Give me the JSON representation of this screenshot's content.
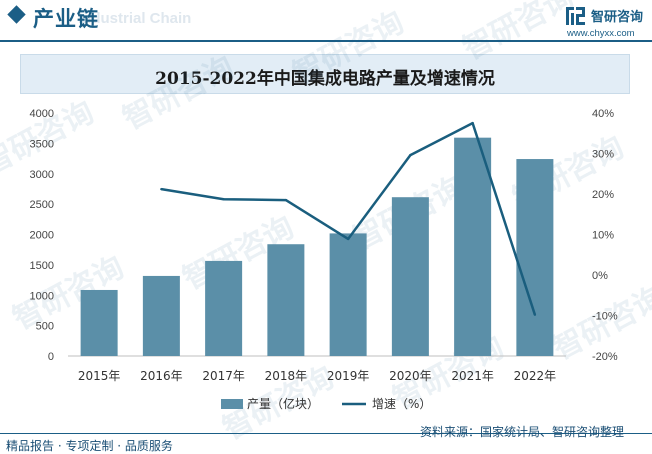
{
  "header": {
    "title": "产业链",
    "subtitle": "Industrial Chain",
    "logo_name": "智研咨询",
    "logo_url": "www.chyxx.com"
  },
  "watermark": {
    "text": "智研咨询"
  },
  "footer": {
    "left": "精品报告 · 专项定制 · 品质服务",
    "source": "资料来源：国家统计局、智研咨询整理"
  },
  "colors": {
    "bar": "#5b8fa8",
    "line": "#1a5e7e",
    "brand": "#1b5e86"
  },
  "chart_data": {
    "type": "bar",
    "title": "2015-2022年中国集成电路产量及增速情况",
    "categories": [
      "2015年",
      "2016年",
      "2017年",
      "2018年",
      "2019年",
      "2020年",
      "2021年",
      "2022年"
    ],
    "series": [
      {
        "name": "产量（亿块）",
        "type": "bar",
        "axis": "left",
        "values": [
          1087,
          1318,
          1565,
          1840,
          2018,
          2614,
          3594,
          3242
        ]
      },
      {
        "name": "增速（%）",
        "type": "line",
        "axis": "right",
        "values": [
          null,
          21.2,
          18.7,
          18.5,
          8.9,
          29.6,
          37.5,
          -9.8
        ]
      }
    ],
    "y_left": {
      "min": 0,
      "max": 4000,
      "ticks": [
        "0",
        "500",
        "1000",
        "1500",
        "2000",
        "2500",
        "3000",
        "3500",
        "4000"
      ]
    },
    "y_right": {
      "min": -20,
      "max": 40,
      "ticks": [
        "-20%",
        "-10%",
        "0%",
        "10%",
        "20%",
        "30%",
        "40%"
      ]
    },
    "legend_position": "bottom-center",
    "grid": false
  }
}
